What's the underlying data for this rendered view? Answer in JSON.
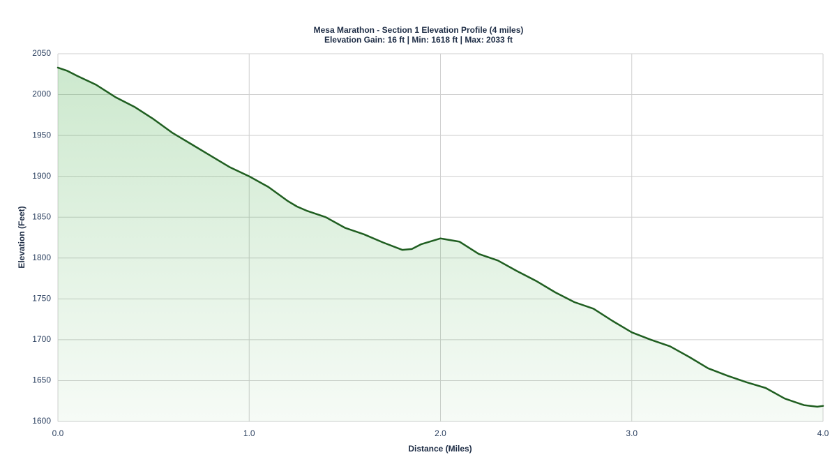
{
  "chart_data": {
    "type": "area",
    "title": "Mesa Marathon - Section 1 Elevation Profile (4 miles)",
    "subtitle": "Elevation Gain: 16 ft | Min: 1618 ft | Max: 2033 ft",
    "x_label": "Distance (Miles)",
    "y_label": "Elevation (Feet)",
    "x": [
      0,
      0.05,
      0.1,
      0.2,
      0.3,
      0.4,
      0.5,
      0.6,
      0.7,
      0.8,
      0.9,
      1.0,
      1.1,
      1.2,
      1.25,
      1.3,
      1.4,
      1.5,
      1.6,
      1.7,
      1.8,
      1.85,
      1.9,
      2.0,
      2.1,
      2.2,
      2.3,
      2.4,
      2.5,
      2.6,
      2.7,
      2.8,
      2.9,
      3.0,
      3.1,
      3.2,
      3.3,
      3.4,
      3.5,
      3.6,
      3.7,
      3.8,
      3.9,
      3.97,
      4.0
    ],
    "series": [
      {
        "name": "Elevation",
        "color": "#1f5e20",
        "values": [
          2033,
          2029,
          2023,
          2012,
          1997,
          1985,
          1970,
          1953,
          1939,
          1925,
          1911,
          1900,
          1887,
          1870,
          1863,
          1858,
          1850,
          1837,
          1829,
          1819,
          1810,
          1811,
          1817,
          1824,
          1820,
          1805,
          1797,
          1784,
          1772,
          1758,
          1746,
          1738,
          1723,
          1709,
          1700,
          1692,
          1679,
          1665,
          1656,
          1648,
          1641,
          1628,
          1620,
          1618,
          1619
        ]
      }
    ],
    "xlim": [
      0,
      4
    ],
    "xticks": [
      {
        "value": 0,
        "label": "0.0"
      },
      {
        "value": 1,
        "label": "1.0"
      },
      {
        "value": 2,
        "label": "2.0"
      },
      {
        "value": 3,
        "label": "3.0"
      },
      {
        "value": 4,
        "label": "4.0"
      }
    ],
    "ylim": [
      1600,
      2050
    ],
    "yticks": [
      1600,
      1650,
      1700,
      1750,
      1800,
      1850,
      1900,
      1950,
      2000,
      2050
    ],
    "grid": true
  }
}
